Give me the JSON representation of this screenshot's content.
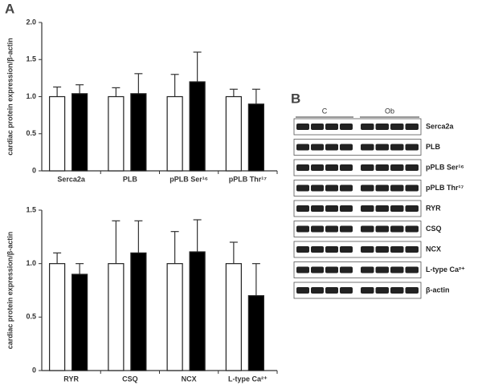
{
  "panel_labels": [
    "A",
    "B"
  ],
  "chart_data": [
    {
      "type": "bar",
      "y_label": "cardiac protein expression/β-actin",
      "categories": [
        "Serca2a",
        "PLB",
        "pPLB Ser¹⁶",
        "pPLB Thr¹⁷"
      ],
      "series": [
        {
          "color": "#ffffff",
          "values": [
            1.0,
            1.0,
            1.0,
            1.0
          ],
          "errors": [
            0.13,
            0.12,
            0.3,
            0.1
          ]
        },
        {
          "color": "#000000",
          "values": [
            1.04,
            1.04,
            1.2,
            0.9
          ],
          "errors": [
            0.12,
            0.27,
            0.4,
            0.2
          ]
        }
      ],
      "ylim": [
        0,
        2
      ],
      "yticks": [
        0,
        0.5,
        {
          "value": 1,
          "label": "1.0"
        },
        1.5,
        {
          "value": 2,
          "label": "2.0"
        }
      ]
    },
    {
      "type": "bar",
      "y_label": "cardiac protein expression/β-actin",
      "categories": [
        "RYR",
        "CSQ",
        "NCX",
        "L-type Ca²⁺"
      ],
      "series": [
        {
          "color": "#ffffff",
          "values": [
            1.0,
            1.0,
            1.0,
            1.0
          ],
          "errors": [
            0.1,
            0.4,
            0.3,
            0.2
          ]
        },
        {
          "color": "#000000",
          "values": [
            0.9,
            1.1,
            1.11,
            0.7
          ],
          "errors": [
            0.1,
            0.3,
            0.3,
            0.3
          ]
        }
      ],
      "ylim": [
        0,
        1.5
      ],
      "yticks": [
        0,
        0.5,
        {
          "value": 1,
          "label": "1.0"
        },
        1.5
      ]
    }
  ],
  "blot": {
    "groups": [
      "C",
      "Ob"
    ],
    "rows": [
      "Serca2a",
      "PLB",
      "pPLB Ser¹⁶",
      "pPLB Thr¹⁷",
      "RYR",
      "CSQ",
      "NCX",
      "L-type Ca²⁺",
      "β-actin"
    ]
  }
}
